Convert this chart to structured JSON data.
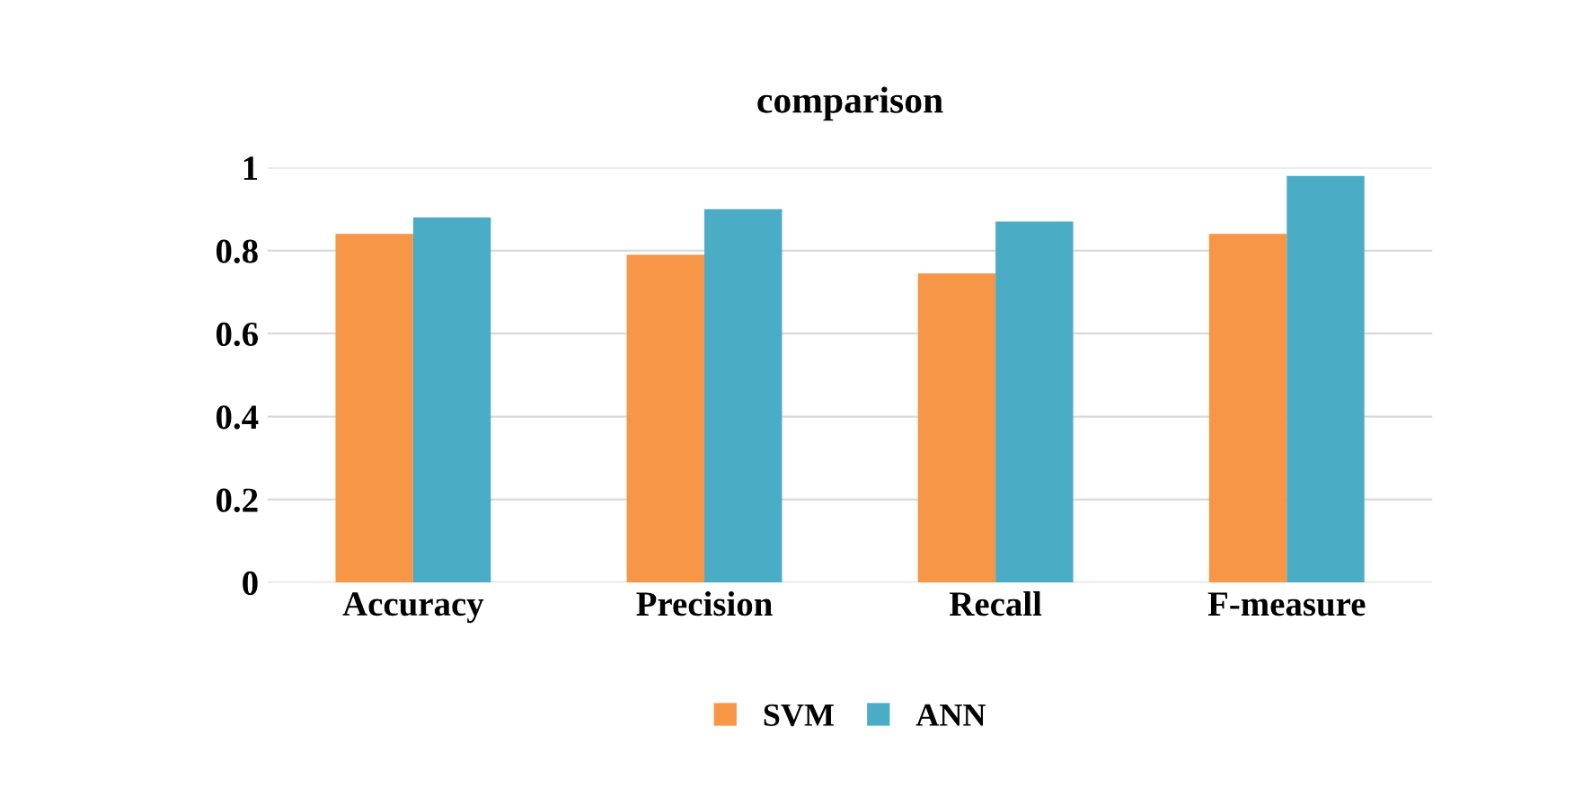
{
  "chart_data": {
    "type": "bar",
    "title": "comparison",
    "categories": [
      "Accuracy",
      "Precision",
      "Recall",
      "F-measure"
    ],
    "series": [
      {
        "name": "SVM",
        "color": "#f79646",
        "values": [
          0.84,
          0.79,
          0.745,
          0.84
        ]
      },
      {
        "name": "ANN",
        "color": "#4bacc6",
        "values": [
          0.88,
          0.9,
          0.87,
          0.98
        ]
      }
    ],
    "ylim": [
      0,
      1
    ],
    "yticks": [
      0,
      0.2,
      0.4,
      0.6,
      0.8,
      1
    ],
    "grid": "y",
    "legend": "bottom"
  }
}
